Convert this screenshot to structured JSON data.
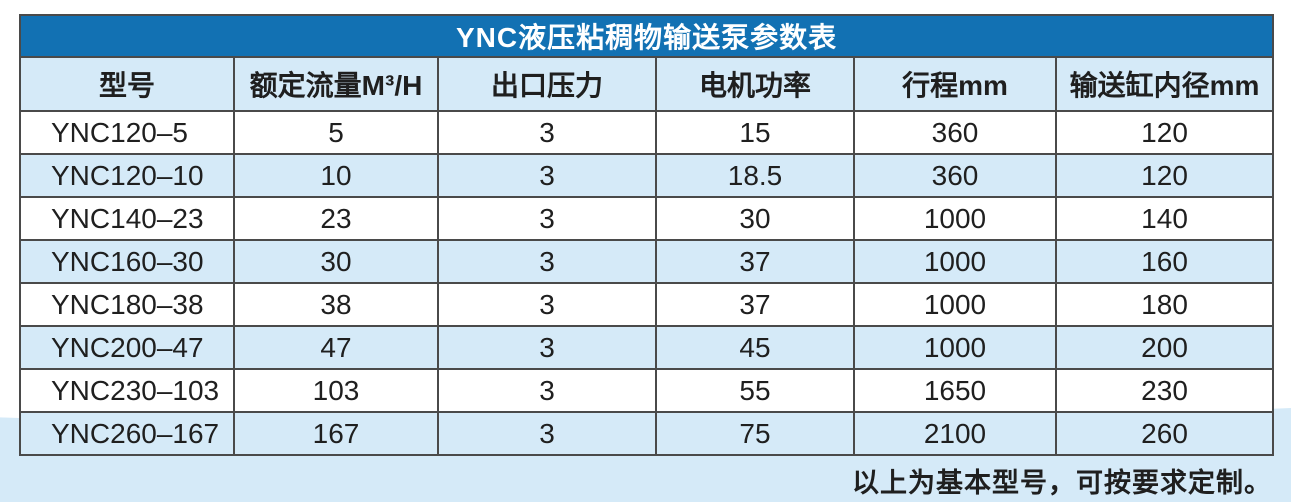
{
  "colors": {
    "title_bar_bg": "#1271b3",
    "title_text": "#ffffff",
    "stripe_blue": "#d5eaf8",
    "border": "#4a4a4a",
    "text": "#1f1f1f",
    "page_bg": "#ffffff",
    "bottom_band": "#d5eaf8"
  },
  "table": {
    "title": "YNC液压粘稠物输送泵参数表",
    "headers": [
      "型号",
      "额定流量M³/H",
      "出口压力",
      "电机功率",
      "行程mm",
      "输送缸内径mm"
    ],
    "rows": [
      [
        "YNC120–5",
        "5",
        "3",
        "15",
        "360",
        "120"
      ],
      [
        "YNC120–10",
        "10",
        "3",
        "18.5",
        "360",
        "120"
      ],
      [
        "YNC140–23",
        "23",
        "3",
        "30",
        "1000",
        "140"
      ],
      [
        "YNC160–30",
        "30",
        "3",
        "37",
        "1000",
        "160"
      ],
      [
        "YNC180–38",
        "38",
        "3",
        "37",
        "1000",
        "180"
      ],
      [
        "YNC200–47",
        "47",
        "3",
        "45",
        "1000",
        "200"
      ],
      [
        "YNC230–103",
        "103",
        "3",
        "55",
        "1650",
        "230"
      ],
      [
        "YNC260–167",
        "167",
        "3",
        "75",
        "2100",
        "260"
      ]
    ]
  },
  "page": {
    "note": "以上为基本型号，可按要求定制。"
  }
}
